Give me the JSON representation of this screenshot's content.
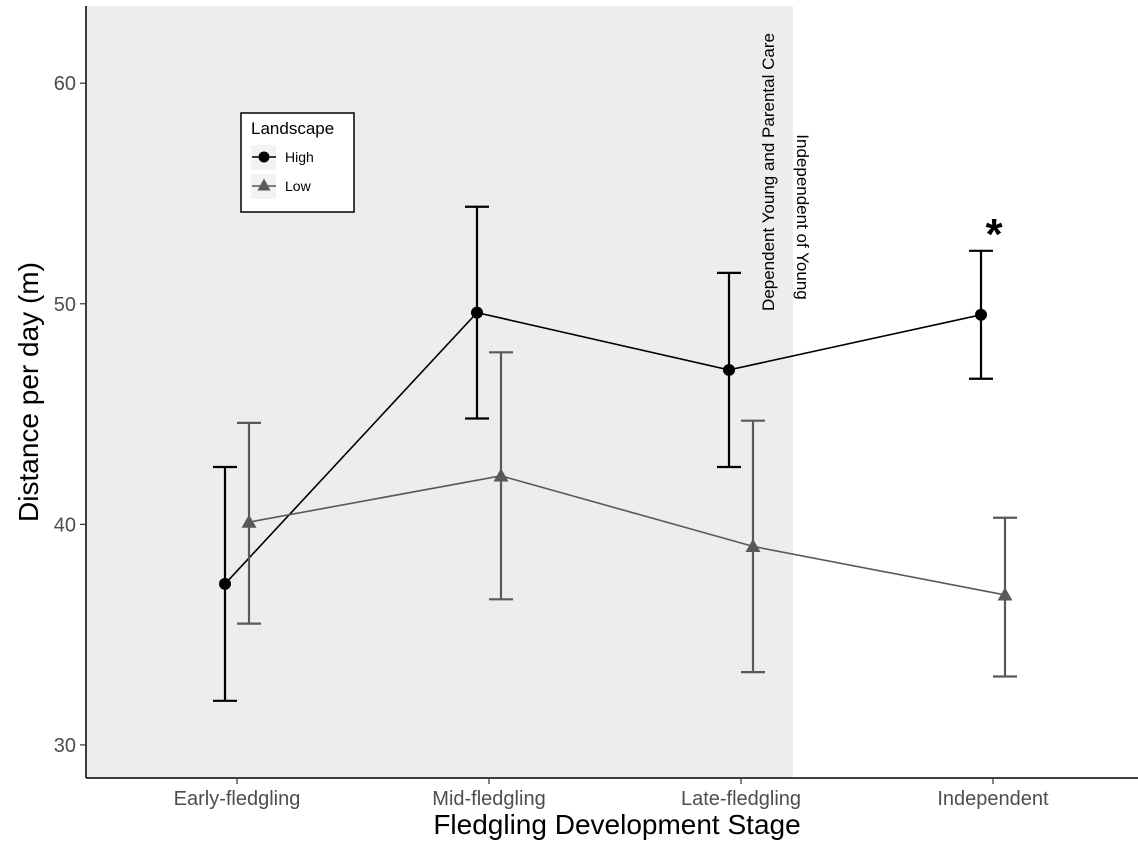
{
  "chart_data": {
    "type": "line",
    "xlabel": "Fledgling Development Stage",
    "ylabel": "Distance per day (m)",
    "categories": [
      "Early-fledgling",
      "Mid-fledgling",
      "Late-fledgling",
      "Independent"
    ],
    "ylim": [
      28.5,
      63.5
    ],
    "yticks": [
      30,
      40,
      50,
      60
    ],
    "grid": false,
    "shaded_region": {
      "from_category": "Early-fledgling",
      "to_category": "Late-fledgling",
      "color": "#ededed"
    },
    "annotations": {
      "left_of_divider": "Dependent Young and Parental Care",
      "right_of_divider": "Independent of Young",
      "significance_mark": "*",
      "significance_category": "Independent"
    },
    "legend": {
      "title": "Landscape",
      "position": "top-left"
    },
    "series": [
      {
        "name": "High",
        "marker": "circle",
        "color": "#000000",
        "values": [
          37.3,
          49.6,
          47.0,
          49.5
        ],
        "err_low": [
          32.0,
          44.8,
          42.6,
          46.6
        ],
        "err_high": [
          42.6,
          54.4,
          51.4,
          52.4
        ]
      },
      {
        "name": "Low",
        "marker": "triangle",
        "color": "#595959",
        "values": [
          40.1,
          42.2,
          39.0,
          36.8
        ],
        "err_low": [
          35.5,
          36.6,
          33.3,
          33.1
        ],
        "err_high": [
          44.6,
          47.8,
          44.7,
          40.3
        ]
      }
    ]
  }
}
